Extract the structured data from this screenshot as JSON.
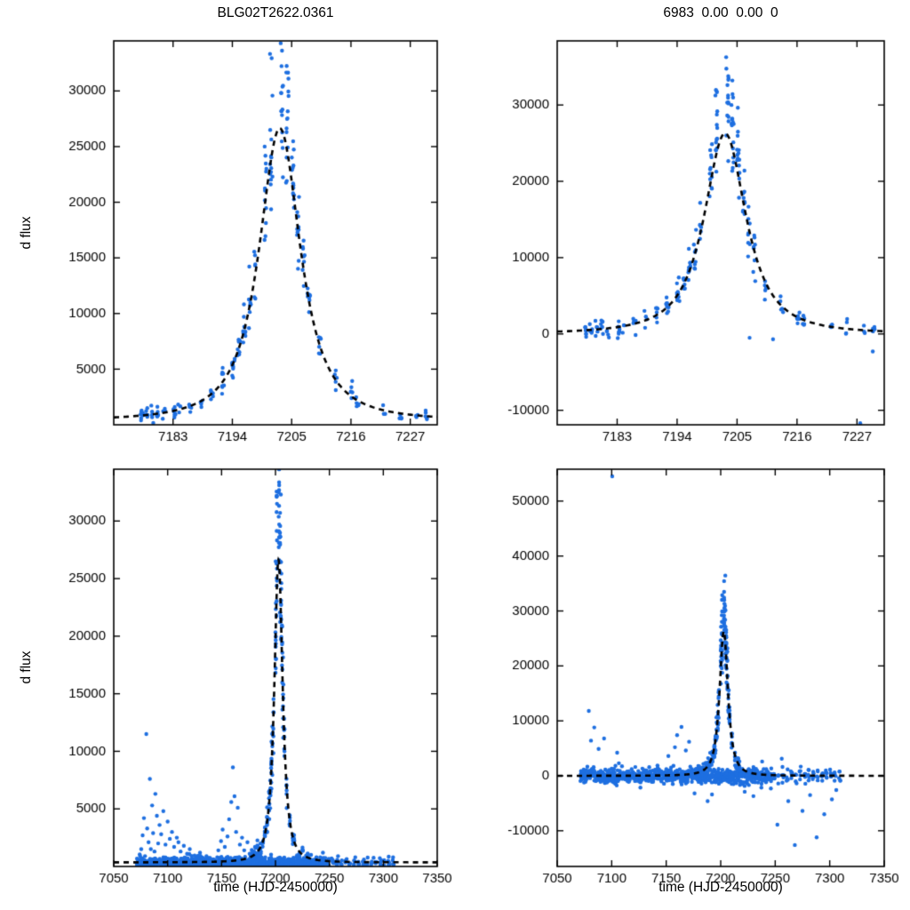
{
  "figure": {
    "background": "#ffffff",
    "point_color": "#1e6fe0",
    "model_color": "#000000",
    "seed": 20150701
  },
  "chart_data": {
    "type": "scatter",
    "model": {
      "t0": 7202.8,
      "peak": 26300,
      "width": 5.3,
      "power": 1.25
    },
    "event_clusters": [
      [
        7177.2,
        8
      ],
      [
        7178.2,
        6
      ],
      [
        7179.2,
        5
      ],
      [
        7180.2,
        6
      ],
      [
        7181.3,
        4
      ],
      [
        7183.2,
        7
      ],
      [
        7184.2,
        3
      ],
      [
        7186.2,
        5
      ],
      [
        7188.2,
        4
      ],
      [
        7190.2,
        6
      ],
      [
        7192.2,
        8
      ],
      [
        7194.2,
        10
      ],
      [
        7195.2,
        8
      ],
      [
        7196.2,
        10
      ],
      [
        7197.3,
        8
      ],
      [
        7198.2,
        6
      ],
      [
        7200.2,
        12
      ],
      [
        7201.2,
        15
      ],
      [
        7203.2,
        18
      ],
      [
        7204.2,
        16
      ],
      [
        7205.2,
        14
      ],
      [
        7206.2,
        10
      ],
      [
        7207.2,
        8
      ],
      [
        7208.2,
        8
      ],
      [
        7210.2,
        6
      ],
      [
        7213.2,
        5
      ],
      [
        7216.2,
        6
      ],
      [
        7217.2,
        5
      ],
      [
        7222.2,
        3
      ],
      [
        7225.2,
        4
      ],
      [
        7228.2,
        3
      ],
      [
        7230.0,
        5
      ]
    ],
    "panels": [
      {
        "id": "top-left",
        "title": "BLG02T2622.0361",
        "ylabel": "d flux",
        "xlabel": "",
        "xlim": [
          7172,
          7232
        ],
        "ylim": [
          0,
          34500
        ],
        "xticks": [
          7183,
          7194,
          7205,
          7216,
          7227
        ],
        "yticks": [
          5000,
          10000,
          15000,
          20000,
          25000,
          30000
        ],
        "offset": 350,
        "use_event_clusters": true,
        "noise": {
          "mult": 0.13,
          "abs": 350,
          "bias_amp": 0.17,
          "bias_center": 7202.8,
          "bias_width": 3.0
        },
        "baseline_spans": [],
        "outliers": []
      },
      {
        "id": "top-right",
        "title": "6983  0.00  0.00  0",
        "ylabel": "",
        "xlabel": "",
        "xlim": [
          7172,
          7232
        ],
        "ylim": [
          -11900,
          38400
        ],
        "xticks": [
          7183,
          7194,
          7205,
          7216,
          7227
        ],
        "yticks": [
          -10000,
          0,
          10000,
          20000,
          30000
        ],
        "offset": 0,
        "use_event_clusters": true,
        "noise": {
          "mult": 0.13,
          "abs": 600,
          "bias_amp": 0.17,
          "bias_center": 7202.8,
          "bias_width": 3.0
        },
        "baseline_spans": [],
        "outliers": [
          [
            7207.3,
            -500
          ],
          [
            7211.6,
            -700
          ],
          [
            7227.6,
            -11700
          ],
          [
            7229.9,
            -2300
          ]
        ]
      },
      {
        "id": "bottom-left",
        "title": "",
        "ylabel": "d flux",
        "xlabel": "time (HJD-2450000)",
        "xlim": [
          7050,
          7350
        ],
        "ylim": [
          0,
          34500
        ],
        "xticks": [
          7050,
          7100,
          7150,
          7200,
          7250,
          7300,
          7350
        ],
        "yticks": [
          5000,
          10000,
          15000,
          20000,
          25000,
          30000
        ],
        "offset": 350,
        "use_event_clusters": true,
        "noise": {
          "mult": 0.13,
          "abs": 350,
          "bias_amp": 0.17,
          "bias_center": 7202.8,
          "bias_width": 3.0
        },
        "baseline_spans": [
          {
            "from": 7072,
            "to": 7246,
            "step": 2.0,
            "n": 8,
            "mean": 330,
            "sigma": 250,
            "fold_min": 60
          },
          {
            "from": 7249,
            "to": 7310,
            "step": 4.0,
            "n": 4,
            "mean": 330,
            "sigma": 250,
            "fold_min": 60
          }
        ],
        "outliers": [
          [
            7075.5,
            1500
          ],
          [
            7076.8,
            2700
          ],
          [
            7078,
            4200
          ],
          [
            7079,
            900
          ],
          [
            7080.2,
            11500
          ],
          [
            7081,
            3300
          ],
          [
            7082.3,
            2100
          ],
          [
            7083.5,
            7600
          ],
          [
            7084.4,
            1500
          ],
          [
            7085.6,
            5300
          ],
          [
            7086.5,
            2900
          ],
          [
            7087.8,
            1300
          ],
          [
            7088.6,
            6300
          ],
          [
            7090,
            4400
          ],
          [
            7091.2,
            2000
          ],
          [
            7092.5,
            3600
          ],
          [
            7094,
            2800
          ],
          [
            7096,
            4800
          ],
          [
            7098,
            1900
          ],
          [
            7100,
            3900
          ],
          [
            7102,
            2400
          ],
          [
            7104,
            3000
          ],
          [
            7106,
            1700
          ],
          [
            7108.5,
            2500
          ],
          [
            7110,
            2100
          ],
          [
            7112,
            1300
          ],
          [
            7115,
            1800
          ],
          [
            7118,
            1100
          ],
          [
            7120.5,
            1500
          ],
          [
            7125,
            950
          ],
          [
            7130,
            1200
          ],
          [
            7136,
            900
          ],
          [
            7147,
            1400
          ],
          [
            7149.5,
            2200
          ],
          [
            7151,
            3200
          ],
          [
            7153,
            1700
          ],
          [
            7155.5,
            2600
          ],
          [
            7157,
            4100
          ],
          [
            7159,
            5600
          ],
          [
            7160.5,
            8600
          ],
          [
            7162,
            6100
          ],
          [
            7163.5,
            3000
          ],
          [
            7165,
            5100
          ],
          [
            7167,
            1900
          ],
          [
            7169,
            2500
          ],
          [
            7171,
            1400
          ],
          [
            7174,
            2100
          ],
          [
            7176,
            1100
          ],
          [
            7181,
            1700
          ],
          [
            7186,
            1250
          ],
          [
            7233,
            1000
          ],
          [
            7238,
            800
          ],
          [
            7244,
            1200
          ],
          [
            7252,
            700
          ],
          [
            7258,
            900
          ],
          [
            7266,
            650
          ],
          [
            7274,
            800
          ],
          [
            7282,
            600
          ],
          [
            7291,
            750
          ],
          [
            7298,
            550
          ],
          [
            7305,
            850
          ]
        ]
      },
      {
        "id": "bottom-right",
        "title": "",
        "ylabel": "",
        "xlabel": "time (HJD-2450000)",
        "xlim": [
          7050,
          7350
        ],
        "ylim": [
          -16500,
          55800
        ],
        "xticks": [
          7050,
          7100,
          7150,
          7200,
          7250,
          7300,
          7350
        ],
        "yticks": [
          -10000,
          0,
          10000,
          20000,
          30000,
          40000,
          50000
        ],
        "offset": 0,
        "use_event_clusters": true,
        "noise": {
          "mult": 0.13,
          "abs": 600,
          "bias_amp": 0.17,
          "bias_center": 7202.8,
          "bias_width": 3.0
        },
        "baseline_spans": [
          {
            "from": 7072,
            "to": 7246,
            "step": 2.0,
            "n": 9,
            "mean": 0,
            "sigma": 700,
            "fold_min": null
          },
          {
            "from": 7249,
            "to": 7310,
            "step": 4.0,
            "n": 5,
            "mean": 0,
            "sigma": 700,
            "fold_min": null
          }
        ],
        "outliers": [
          [
            7079,
            11800
          ],
          [
            7081,
            6400
          ],
          [
            7084,
            8800
          ],
          [
            7088,
            4900
          ],
          [
            7093,
            6800
          ],
          [
            7100.5,
            54500
          ],
          [
            7105,
            4200
          ],
          [
            7152,
            3600
          ],
          [
            7158,
            5200
          ],
          [
            7160,
            7400
          ],
          [
            7164,
            8900
          ],
          [
            7168,
            4600
          ],
          [
            7171,
            6200
          ],
          [
            7176,
            -3200
          ],
          [
            7188,
            -4600
          ],
          [
            7192,
            -3400
          ],
          [
            7216,
            3200
          ],
          [
            7222,
            -2900
          ],
          [
            7230,
            -3700
          ],
          [
            7238,
            2600
          ],
          [
            7246,
            -2300
          ],
          [
            7252,
            -8900
          ],
          [
            7256,
            3100
          ],
          [
            7262,
            -4600
          ],
          [
            7268,
            -12600
          ],
          [
            7275,
            -6400
          ],
          [
            7282,
            -3500
          ],
          [
            7288,
            -11200
          ],
          [
            7295,
            -7000
          ],
          [
            7302,
            -4300
          ],
          [
            7306,
            -2600
          ]
        ]
      }
    ]
  }
}
